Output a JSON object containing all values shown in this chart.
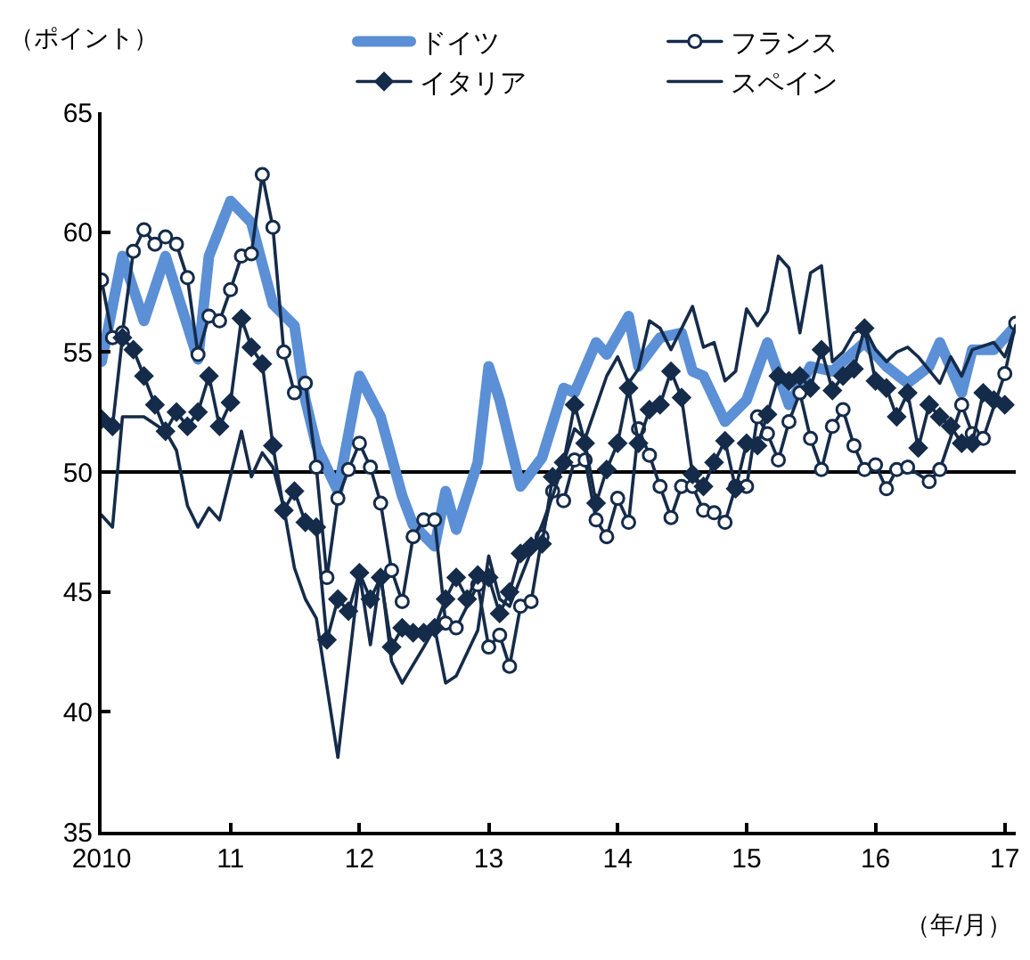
{
  "chart_data": {
    "type": "line",
    "ylabel": "（ポイント）",
    "xlabel": "（年/月）",
    "xlim": [
      "2010-01",
      "2017-02"
    ],
    "xticks": [
      {
        "value": "2010-01",
        "label": "2010"
      },
      {
        "value": "2011-01",
        "label": "11"
      },
      {
        "value": "2012-01",
        "label": "12"
      },
      {
        "value": "2013-01",
        "label": "13"
      },
      {
        "value": "2014-01",
        "label": "14"
      },
      {
        "value": "2015-01",
        "label": "15"
      },
      {
        "value": "2016-01",
        "label": "16"
      },
      {
        "value": "2017-01",
        "label": "17"
      }
    ],
    "ylim": [
      35,
      65
    ],
    "yticks": [
      35,
      40,
      45,
      50,
      55,
      60,
      65
    ],
    "grid": false,
    "legend": "top",
    "line_style": "solid",
    "ref_lines": [
      {
        "axis": "y",
        "value": 50,
        "color": "#000000"
      }
    ],
    "series": [
      {
        "name": "ドイツ",
        "color": "#5b8fd6",
        "marker": "none",
        "x": [
          "2010-01",
          "2010-03",
          "2010-05",
          "2010-07",
          "2010-09",
          "2010-10",
          "2010-11",
          "2011-01",
          "2011-03",
          "2011-05",
          "2011-07",
          "2011-08",
          "2011-09",
          "2011-11",
          "2012-01",
          "2012-03",
          "2012-05",
          "2012-06",
          "2012-08",
          "2012-09",
          "2012-10",
          "2012-12",
          "2013-01",
          "2013-02",
          "2013-04",
          "2013-06",
          "2013-08",
          "2013-09",
          "2013-11",
          "2013-12",
          "2014-02",
          "2014-03",
          "2014-05",
          "2014-07",
          "2014-08",
          "2014-09",
          "2014-11",
          "2015-01",
          "2015-03",
          "2015-05",
          "2015-07",
          "2015-09",
          "2015-12",
          "2016-02",
          "2016-04",
          "2016-06",
          "2016-07",
          "2016-09",
          "2016-10",
          "2016-12",
          "2017-02"
        ],
        "values": [
          54.6,
          59.0,
          56.3,
          59.0,
          56.1,
          54.7,
          59.0,
          61.3,
          60.4,
          57.0,
          56.1,
          53.0,
          51.1,
          49.2,
          54.0,
          52.3,
          49.0,
          47.8,
          46.9,
          49.2,
          47.6,
          50.4,
          54.4,
          53.0,
          49.4,
          50.6,
          53.5,
          53.3,
          55.4,
          54.9,
          56.5,
          54.4,
          55.6,
          55.8,
          54.2,
          54.0,
          52.1,
          53.0,
          55.4,
          52.8,
          54.4,
          54.2,
          55.4,
          54.4,
          53.7,
          54.4,
          55.4,
          53.3,
          55.1,
          55.1,
          56.1
        ]
      },
      {
        "name": "フランス",
        "color": "#152b4a",
        "marker": "circle",
        "x": [
          "2010-01",
          "2010-02",
          "2010-03",
          "2010-04",
          "2010-05",
          "2010-06",
          "2010-07",
          "2010-08",
          "2010-09",
          "2010-10",
          "2010-11",
          "2010-12",
          "2011-01",
          "2011-02",
          "2011-03",
          "2011-04",
          "2011-05",
          "2011-06",
          "2011-07",
          "2011-08",
          "2011-09",
          "2011-10",
          "2011-11",
          "2011-12",
          "2012-01",
          "2012-02",
          "2012-03",
          "2012-04",
          "2012-05",
          "2012-06",
          "2012-07",
          "2012-08",
          "2012-09",
          "2012-10",
          "2012-12",
          "2013-01",
          "2013-02",
          "2013-03",
          "2013-04",
          "2013-05",
          "2013-06",
          "2013-07",
          "2013-08",
          "2013-09",
          "2013-10",
          "2013-11",
          "2013-12",
          "2014-01",
          "2014-02",
          "2014-03",
          "2014-04",
          "2014-05",
          "2014-06",
          "2014-07",
          "2014-08",
          "2014-09",
          "2014-10",
          "2014-11",
          "2014-12",
          "2015-01",
          "2015-02",
          "2015-03",
          "2015-04",
          "2015-05",
          "2015-06",
          "2015-07",
          "2015-08",
          "2015-09",
          "2015-10",
          "2015-11",
          "2015-12",
          "2016-01",
          "2016-02",
          "2016-03",
          "2016-04",
          "2016-06",
          "2016-07",
          "2016-09",
          "2016-10",
          "2016-11",
          "2017-01",
          "2017-02"
        ],
        "values": [
          58.0,
          55.6,
          55.8,
          59.2,
          60.1,
          59.5,
          59.8,
          59.5,
          58.1,
          54.9,
          56.5,
          56.3,
          57.6,
          59.0,
          59.1,
          62.4,
          60.2,
          55.0,
          53.3,
          53.7,
          50.2,
          45.6,
          48.9,
          50.1,
          51.2,
          50.2,
          48.7,
          45.9,
          44.6,
          47.3,
          48.0,
          48.0,
          43.7,
          43.5,
          45.3,
          42.7,
          43.2,
          41.9,
          44.4,
          44.6,
          47.3,
          49.2,
          48.8,
          50.5,
          50.5,
          48.0,
          47.3,
          48.9,
          47.9,
          51.8,
          50.7,
          49.4,
          48.1,
          49.4,
          49.4,
          48.4,
          48.3,
          47.9,
          49.4,
          49.4,
          52.3,
          51.6,
          50.5,
          52.1,
          53.3,
          51.4,
          50.1,
          51.9,
          52.6,
          51.1,
          50.1,
          50.3,
          49.3,
          50.1,
          50.2,
          49.6,
          50.1,
          52.8,
          51.6,
          51.4,
          54.1,
          56.2
        ]
      },
      {
        "name": "イタリア",
        "color": "#152b4a",
        "marker": "diamond",
        "x": [
          "2010-01",
          "2010-02",
          "2010-03",
          "2010-04",
          "2010-05",
          "2010-06",
          "2010-07",
          "2010-08",
          "2010-09",
          "2010-10",
          "2010-11",
          "2010-12",
          "2011-01",
          "2011-02",
          "2011-03",
          "2011-04",
          "2011-05",
          "2011-06",
          "2011-07",
          "2011-08",
          "2011-09",
          "2011-10",
          "2011-11",
          "2011-12",
          "2012-01",
          "2012-02",
          "2012-03",
          "2012-04",
          "2012-05",
          "2012-06",
          "2012-07",
          "2012-08",
          "2012-09",
          "2012-10",
          "2012-11",
          "2012-12",
          "2013-01",
          "2013-02",
          "2013-03",
          "2013-04",
          "2013-05",
          "2013-06",
          "2013-07",
          "2013-08",
          "2013-09",
          "2013-10",
          "2013-11",
          "2013-12",
          "2014-01",
          "2014-02",
          "2014-03",
          "2014-04",
          "2014-05",
          "2014-06",
          "2014-07",
          "2014-08",
          "2014-09",
          "2014-10",
          "2014-11",
          "2014-12",
          "2015-01",
          "2015-02",
          "2015-03",
          "2015-04",
          "2015-05",
          "2015-06",
          "2015-07",
          "2015-08",
          "2015-09",
          "2015-10",
          "2015-11",
          "2015-12",
          "2016-01",
          "2016-02",
          "2016-03",
          "2016-04",
          "2016-05",
          "2016-06",
          "2016-07",
          "2016-08",
          "2016-09",
          "2016-10",
          "2016-11",
          "2016-12",
          "2017-01"
        ],
        "values": [
          52.2,
          51.9,
          55.6,
          55.1,
          54.0,
          52.8,
          51.7,
          52.5,
          51.9,
          52.5,
          54.0,
          51.9,
          52.9,
          56.4,
          55.2,
          54.5,
          51.1,
          48.4,
          49.2,
          47.9,
          47.7,
          43.0,
          44.7,
          44.2,
          45.8,
          44.7,
          45.6,
          42.7,
          43.5,
          43.3,
          43.3,
          43.5,
          44.7,
          45.6,
          44.7,
          45.7,
          45.6,
          44.1,
          45.0,
          46.6,
          46.9,
          47.0,
          49.8,
          50.4,
          52.8,
          51.2,
          48.7,
          50.1,
          51.2,
          53.5,
          51.2,
          52.6,
          52.8,
          54.2,
          53.1,
          49.9,
          49.4,
          50.4,
          51.3,
          49.3,
          51.2,
          51.1,
          52.4,
          54.0,
          53.8,
          54.0,
          53.5,
          55.1,
          53.4,
          54.0,
          54.3,
          56.0,
          53.8,
          53.5,
          52.3,
          53.3,
          51.0,
          52.8,
          52.3,
          51.9,
          51.2,
          51.2,
          53.3,
          53.0,
          52.8
        ]
      },
      {
        "name": "スペイン",
        "color": "#152b4a",
        "marker": "none",
        "x": [
          "2010-01",
          "2010-02",
          "2010-03",
          "2010-05",
          "2010-07",
          "2010-08",
          "2010-09",
          "2010-10",
          "2010-11",
          "2010-12",
          "2011-02",
          "2011-03",
          "2011-04",
          "2011-05",
          "2011-06",
          "2011-07",
          "2011-08",
          "2011-09",
          "2011-11",
          "2012-01",
          "2012-02",
          "2012-03",
          "2012-04",
          "2012-05",
          "2012-07",
          "2012-08",
          "2012-09",
          "2012-10",
          "2012-12",
          "2013-01",
          "2013-02",
          "2013-03",
          "2013-05",
          "2013-06",
          "2013-07",
          "2013-08",
          "2013-09",
          "2013-10",
          "2013-12",
          "2014-01",
          "2014-02",
          "2014-03",
          "2014-04",
          "2014-05",
          "2014-06",
          "2014-08",
          "2014-09",
          "2014-10",
          "2014-11",
          "2014-12",
          "2015-01",
          "2015-02",
          "2015-03",
          "2015-04",
          "2015-05",
          "2015-06",
          "2015-07",
          "2015-08",
          "2015-09",
          "2015-10",
          "2015-11",
          "2015-12",
          "2016-01",
          "2016-02",
          "2016-03",
          "2016-04",
          "2016-05",
          "2016-07",
          "2016-08",
          "2016-09",
          "2016-10",
          "2016-12",
          "2017-01",
          "2017-02"
        ],
        "values": [
          48.2,
          47.7,
          52.3,
          52.3,
          51.7,
          50.9,
          48.6,
          47.7,
          48.5,
          48.0,
          51.7,
          49.8,
          50.8,
          50.2,
          48.5,
          46.0,
          44.7,
          43.9,
          38.1,
          45.8,
          42.8,
          45.8,
          42.1,
          41.2,
          42.7,
          43.5,
          41.2,
          41.5,
          43.4,
          46.5,
          44.7,
          44.4,
          46.7,
          47.8,
          49.0,
          50.4,
          51.8,
          51.4,
          54.0,
          54.8,
          53.7,
          54.3,
          56.3,
          56.0,
          55.1,
          56.9,
          55.2,
          55.4,
          53.8,
          54.2,
          56.8,
          56.1,
          56.7,
          59.0,
          58.5,
          55.8,
          58.3,
          58.6,
          54.6,
          55.0,
          55.8,
          56.0,
          55.1,
          54.6,
          55.0,
          55.2,
          54.8,
          53.7,
          54.8,
          54.0,
          55.1,
          55.4,
          54.8,
          56.1
        ]
      }
    ]
  }
}
